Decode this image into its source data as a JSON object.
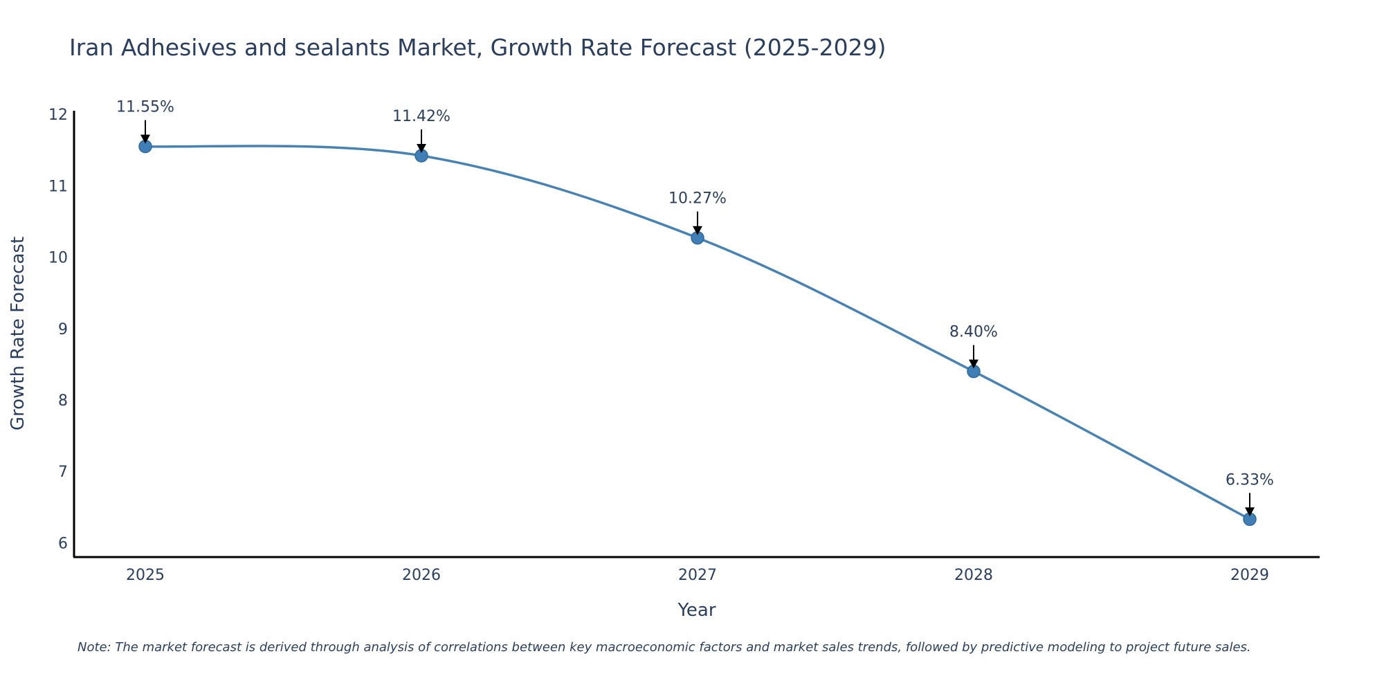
{
  "chart_data": {
    "type": "line",
    "title": "Iran Adhesives and sealants Market, Growth Rate Forecast (2025-2029)",
    "xlabel": "Year",
    "ylabel": "Growth Rate Forecast",
    "categories": [
      "2025",
      "2026",
      "2027",
      "2028",
      "2029"
    ],
    "series": [
      {
        "name": "Growth Rate Forecast",
        "values": [
          11.55,
          11.42,
          10.27,
          8.4,
          6.33
        ],
        "labels": [
          "11.55%",
          "11.42%",
          "10.27%",
          "8.40%",
          "6.33%"
        ]
      }
    ],
    "yticks": [
      6,
      7,
      8,
      9,
      10,
      11,
      12
    ],
    "ylim": [
      5.8,
      12.05
    ],
    "grid": false,
    "line_shape": "spline",
    "colors": {
      "line": "#4682B4",
      "marker": "#3f7fb5",
      "text": "#2a3f5f",
      "axis": "#000000",
      "arrow": "#000000"
    },
    "note": "Note: The market forecast is derived through analysis of correlations between key macroeconomic factors and market sales trends, followed by predictive modeling to project future sales."
  }
}
